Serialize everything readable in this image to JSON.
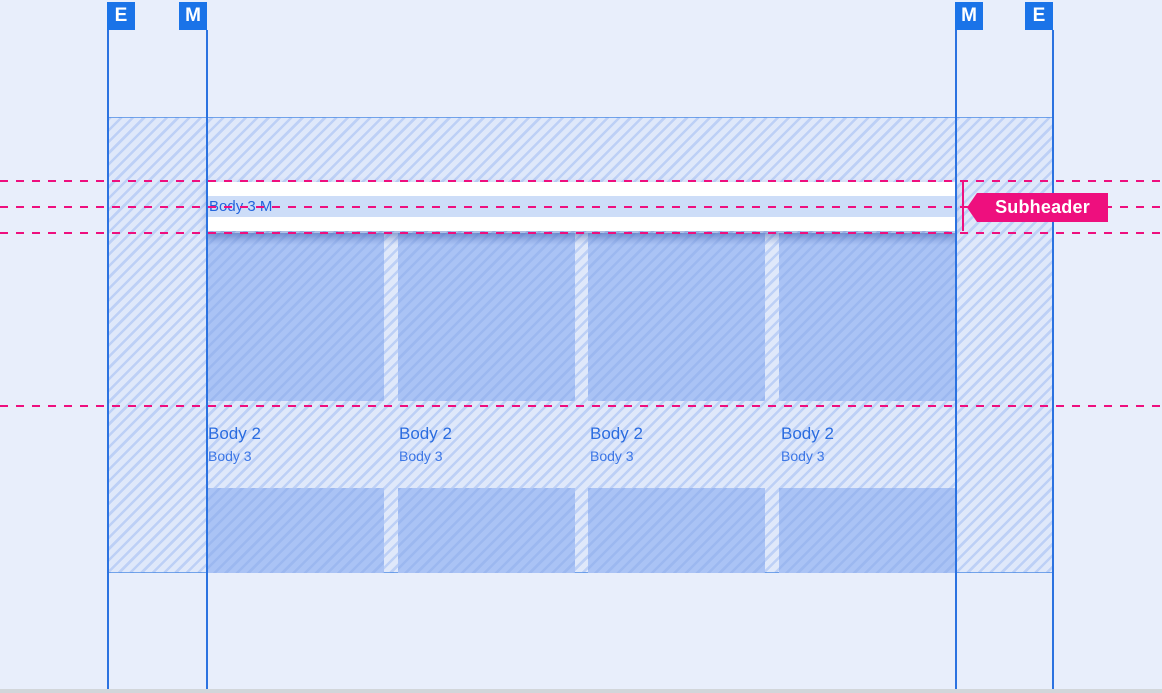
{
  "colors": {
    "background": "#e8eefb",
    "keyline_blue": "#2b72e0",
    "badge_blue": "#1a73e8",
    "card_blue": "#aac3f5",
    "band_blue": "#cdddf8",
    "text_blue": "#2a6ce0",
    "accent_pink": "#ee0f7e",
    "bar_white": "#ffffff"
  },
  "badges": [
    {
      "label": "E"
    },
    {
      "label": "M"
    },
    {
      "label": "M"
    },
    {
      "label": "E"
    }
  ],
  "subheader_bar": {
    "label": "Body 3 M"
  },
  "annotation": {
    "label": "Subheader"
  },
  "cards": [
    {
      "title": "Body 2",
      "subtitle": "Body 3"
    },
    {
      "title": "Body 2",
      "subtitle": "Body 3"
    },
    {
      "title": "Body 2",
      "subtitle": "Body 3"
    },
    {
      "title": "Body 2",
      "subtitle": "Body 3"
    }
  ]
}
